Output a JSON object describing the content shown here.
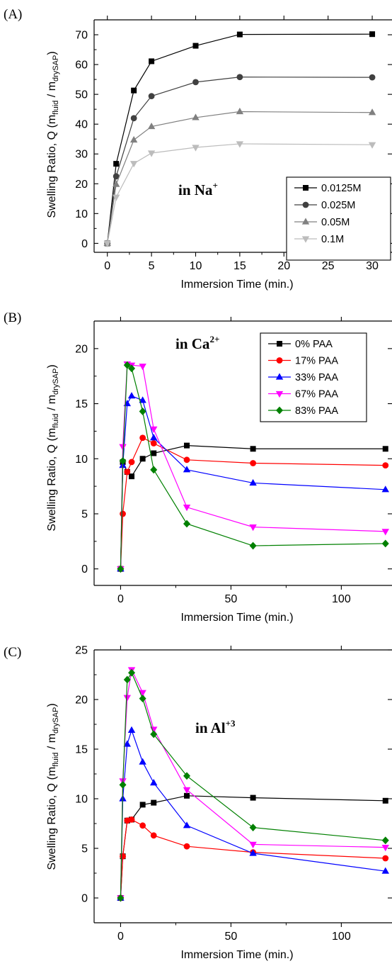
{
  "chart_data": [
    {
      "type": "line",
      "panel_label": "(A)",
      "annotation": {
        "text": "in Na",
        "sup": "+"
      },
      "xlabel": "Immersion Time (min.)",
      "ylabel": {
        "main": "Swelling Ratio, Q (m",
        "sub1": "fluid",
        "mid": " / m",
        "sub2": "drySAP",
        "end": ")"
      },
      "xlim": [
        -1.5,
        32
      ],
      "ylim": [
        -3,
        75
      ],
      "xticks": [
        0,
        5,
        10,
        15,
        20,
        25,
        30
      ],
      "yticks": [
        0,
        10,
        20,
        30,
        40,
        50,
        60,
        70
      ],
      "series": [
        {
          "name": "0.0125M",
          "color": "#000000",
          "marker": "square",
          "x": [
            0,
            1,
            3,
            5,
            10,
            15,
            30
          ],
          "y": [
            0,
            26.7,
            51.3,
            61.1,
            66.3,
            70.1,
            70.2
          ]
        },
        {
          "name": "0.025M",
          "color": "#404040",
          "marker": "circle",
          "x": [
            0,
            1,
            3,
            5,
            10,
            15,
            30
          ],
          "y": [
            0,
            22.5,
            42.0,
            49.4,
            54.1,
            55.8,
            55.7
          ]
        },
        {
          "name": "0.05M",
          "color": "#808080",
          "marker": "triangle-up",
          "x": [
            0,
            1,
            3,
            5,
            10,
            15,
            30
          ],
          "y": [
            0,
            19.8,
            34.7,
            39.2,
            42.2,
            44.2,
            43.9
          ]
        },
        {
          "name": "0.1M",
          "color": "#bcbcbc",
          "marker": "triangle-down",
          "x": [
            0,
            1,
            3,
            5,
            10,
            15,
            30
          ],
          "y": [
            0,
            15.5,
            26.8,
            30.3,
            32.2,
            33.4,
            33.1
          ]
        }
      ]
    },
    {
      "type": "line",
      "panel_label": "(B)",
      "annotation": {
        "text": "in Ca",
        "sup": "2+"
      },
      "xlabel": "Immersion Time (min.)",
      "ylabel": {
        "main": "Swelling Ratio, Q (m",
        "sub1": "fluid",
        "mid": " / m",
        "sub2": "drySAP",
        "end": ")"
      },
      "xlim": [
        -12,
        122
      ],
      "ylim": [
        -1.5,
        22.5
      ],
      "xticks": [
        0,
        50,
        100
      ],
      "yticks": [
        0,
        5,
        10,
        15,
        20
      ],
      "series": [
        {
          "name": "0% PAA",
          "color": "#000000",
          "marker": "square",
          "x": [
            0,
            1,
            3,
            5,
            10,
            15,
            30,
            60,
            120
          ],
          "y": [
            0,
            9.7,
            8.8,
            8.4,
            10.0,
            10.5,
            11.2,
            10.9,
            10.9
          ]
        },
        {
          "name": "17% PAA",
          "color": "#ff0000",
          "marker": "circle",
          "x": [
            0,
            1,
            3,
            5,
            10,
            15,
            30,
            60,
            120
          ],
          "y": [
            0,
            5.0,
            8.8,
            9.7,
            11.9,
            11.4,
            9.9,
            9.6,
            9.4
          ]
        },
        {
          "name": "33% PAA",
          "color": "#0000ff",
          "marker": "triangle-up",
          "x": [
            0,
            1,
            3,
            5,
            10,
            15,
            30,
            60,
            120
          ],
          "y": [
            0,
            9.4,
            15.0,
            15.7,
            15.3,
            11.9,
            9.0,
            7.8,
            7.2
          ]
        },
        {
          "name": "67% PAA",
          "color": "#ff00ff",
          "marker": "triangle-down",
          "x": [
            0,
            1,
            3,
            5,
            10,
            15,
            30,
            60,
            120
          ],
          "y": [
            0,
            11.1,
            18.6,
            18.5,
            18.4,
            12.7,
            5.6,
            3.8,
            3.4
          ]
        },
        {
          "name": "83% PAA",
          "color": "#008000",
          "marker": "diamond",
          "x": [
            0,
            1,
            3,
            5,
            10,
            15,
            30,
            60,
            120
          ],
          "y": [
            0,
            9.8,
            18.5,
            18.2,
            14.3,
            9.0,
            4.1,
            2.1,
            2.3
          ]
        }
      ]
    },
    {
      "type": "line",
      "panel_label": "(C)",
      "annotation": {
        "text": "in Al",
        "sup": "+3"
      },
      "xlabel": "Immersion Time (min.)",
      "ylabel": {
        "main": "Swelling Ratio, Q (m",
        "sub1": "fluid",
        "mid": " / m",
        "sub2": "drySAP",
        "end": ")"
      },
      "xlim": [
        -12,
        122
      ],
      "ylim": [
        -2.5,
        25
      ],
      "xticks": [
        0,
        50,
        100
      ],
      "yticks": [
        0,
        5,
        10,
        15,
        20,
        25
      ],
      "series": [
        {
          "name": "0% PAA",
          "color": "#000000",
          "marker": "square",
          "x": [
            0,
            1,
            3,
            5,
            10,
            15,
            30,
            60,
            120
          ],
          "y": [
            0,
            4.2,
            7.8,
            7.9,
            9.4,
            9.6,
            10.3,
            10.1,
            9.8
          ]
        },
        {
          "name": "17% PAA",
          "color": "#ff0000",
          "marker": "circle",
          "x": [
            0,
            1,
            3,
            5,
            10,
            15,
            30,
            60,
            120
          ],
          "y": [
            0,
            4.2,
            7.8,
            7.9,
            7.3,
            6.3,
            5.2,
            4.6,
            4.0
          ]
        },
        {
          "name": "33% PAA",
          "color": "#0000ff",
          "marker": "triangle-up",
          "x": [
            0,
            1,
            3,
            5,
            10,
            15,
            30,
            60,
            120
          ],
          "y": [
            0,
            10.0,
            15.5,
            16.9,
            13.7,
            11.6,
            7.3,
            4.5,
            2.7
          ]
        },
        {
          "name": "67% PAA",
          "color": "#ff00ff",
          "marker": "triangle-down",
          "x": [
            0,
            1,
            3,
            5,
            10,
            15,
            30,
            60,
            120
          ],
          "y": [
            0,
            11.8,
            20.2,
            23.0,
            20.7,
            17.0,
            10.9,
            5.4,
            5.1
          ]
        },
        {
          "name": "83% PAA",
          "color": "#008000",
          "marker": "diamond",
          "x": [
            0,
            1,
            3,
            5,
            10,
            15,
            30,
            60,
            120
          ],
          "y": [
            0,
            11.4,
            22.0,
            22.7,
            20.1,
            16.5,
            12.3,
            7.1,
            5.8
          ]
        }
      ]
    }
  ]
}
